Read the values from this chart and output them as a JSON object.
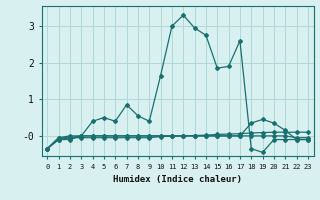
{
  "xlabel": "Humidex (Indice chaleur)",
  "ylabel": "",
  "bg_color": "#d8f0f0",
  "grid_color": "#b0d8d8",
  "line_color": "#1a7070",
  "xlim": [
    -0.5,
    23.5
  ],
  "ylim": [
    -0.55,
    3.55
  ],
  "yticks": [
    0,
    1,
    2,
    3
  ],
  "ytick_labels": [
    "-0",
    "1",
    "2",
    "3"
  ],
  "xticks": [
    0,
    1,
    2,
    3,
    4,
    5,
    6,
    7,
    8,
    9,
    10,
    11,
    12,
    13,
    14,
    15,
    16,
    17,
    18,
    19,
    20,
    21,
    22,
    23
  ],
  "lines": [
    {
      "x": [
        0,
        1,
        2,
        3,
        4,
        5,
        6,
        7,
        8,
        9,
        10,
        11,
        12,
        13,
        14,
        15,
        16,
        17,
        18,
        19,
        20,
        21,
        22,
        23
      ],
      "y": [
        -0.35,
        -0.05,
        0.0,
        0.0,
        0.4,
        0.5,
        0.4,
        0.85,
        0.55,
        0.4,
        1.65,
        3.0,
        3.3,
        2.95,
        2.75,
        1.85,
        1.9,
        2.6,
        -0.35,
        -0.45,
        -0.1,
        -0.1,
        -0.1,
        -0.1
      ]
    },
    {
      "x": [
        0,
        1,
        2,
        3,
        4,
        5,
        6,
        7,
        8,
        9,
        10,
        11,
        12,
        13,
        14,
        15,
        16,
        17,
        18,
        19,
        20,
        21,
        22,
        23
      ],
      "y": [
        -0.35,
        -0.1,
        -0.1,
        -0.0,
        -0.0,
        -0.0,
        -0.0,
        -0.0,
        -0.0,
        -0.0,
        0.0,
        0.0,
        0.0,
        0.0,
        0.0,
        0.0,
        0.0,
        0.0,
        0.35,
        0.45,
        0.35,
        0.15,
        -0.1,
        -0.1
      ]
    },
    {
      "x": [
        0,
        1,
        2,
        3,
        4,
        5,
        6,
        7,
        8,
        9,
        10,
        11,
        12,
        13,
        14,
        15,
        16,
        17,
        18,
        19,
        20,
        21,
        22,
        23
      ],
      "y": [
        -0.35,
        -0.05,
        -0.05,
        -0.05,
        -0.05,
        -0.05,
        -0.05,
        -0.05,
        -0.05,
        -0.05,
        -0.02,
        -0.01,
        0.0,
        0.01,
        0.02,
        0.04,
        0.05,
        0.06,
        0.08,
        0.09,
        0.1,
        0.1,
        0.1,
        0.1
      ]
    },
    {
      "x": [
        0,
        1,
        2,
        3,
        4,
        5,
        6,
        7,
        8,
        9,
        10,
        11,
        12,
        13,
        14,
        15,
        16,
        17,
        18,
        19,
        20,
        21,
        22,
        23
      ],
      "y": [
        -0.35,
        -0.1,
        -0.05,
        -0.0,
        -0.0,
        -0.0,
        -0.0,
        -0.0,
        -0.0,
        -0.0,
        0.0,
        0.0,
        0.0,
        0.0,
        0.0,
        0.0,
        0.0,
        0.0,
        -0.0,
        0.0,
        0.0,
        0.0,
        -0.05,
        -0.05
      ]
    }
  ]
}
